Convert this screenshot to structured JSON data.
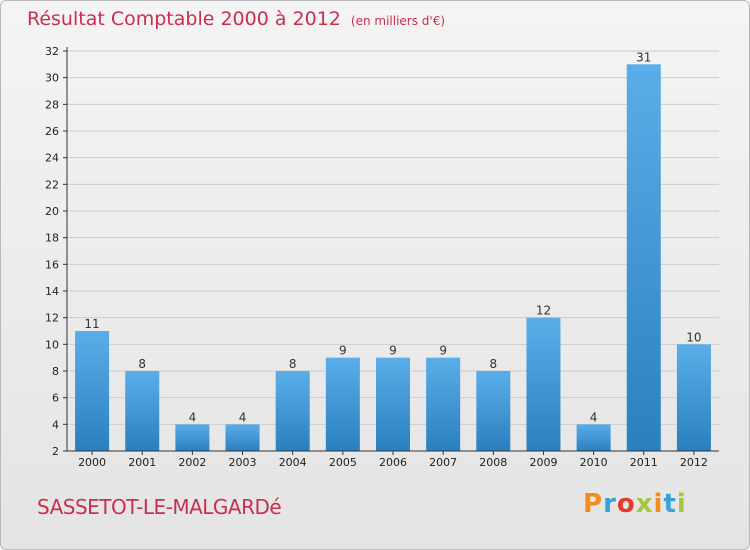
{
  "header": {
    "title": "Résultat Comptable 2000 à 2012",
    "subtitle": "(en milliers d'€)"
  },
  "footer": {
    "commune": "SASSETOT-LE-MALGARDé",
    "logo_letters": [
      "P",
      "r",
      "o",
      "x",
      "i",
      "t",
      "i"
    ],
    "logo_colors": [
      "#f28c1e",
      "#3aa0d8",
      "#e8372b",
      "#a3c93a",
      "#f28c1e",
      "#3aa0d8",
      "#a3c93a"
    ]
  },
  "chart_data": {
    "type": "bar",
    "title": "Résultat Comptable 2000 à 2012",
    "subtitle": "(en milliers d'€)",
    "xlabel": "",
    "ylabel": "",
    "categories": [
      "2000",
      "2001",
      "2002",
      "2003",
      "2004",
      "2005",
      "2006",
      "2007",
      "2008",
      "2009",
      "2010",
      "2011",
      "2012"
    ],
    "values": [
      11,
      8,
      4,
      4,
      8,
      9,
      9,
      9,
      8,
      12,
      4,
      31,
      10
    ],
    "data_labels": [
      "11",
      "8",
      "4",
      "4",
      "8",
      "9",
      "9",
      "9",
      "8",
      "12",
      "4",
      "31",
      "10"
    ],
    "ylim": [
      2,
      32
    ],
    "yticks": [
      "2",
      "4",
      "6",
      "8",
      "10",
      "12",
      "14",
      "16",
      "18",
      "20",
      "22",
      "24",
      "26",
      "28",
      "30",
      "32"
    ],
    "grid": true,
    "colors": {
      "bar_top": "#5aaee8",
      "bar_bottom": "#2a7fbf",
      "grid": "#cccccc",
      "axis": "#333333"
    }
  }
}
